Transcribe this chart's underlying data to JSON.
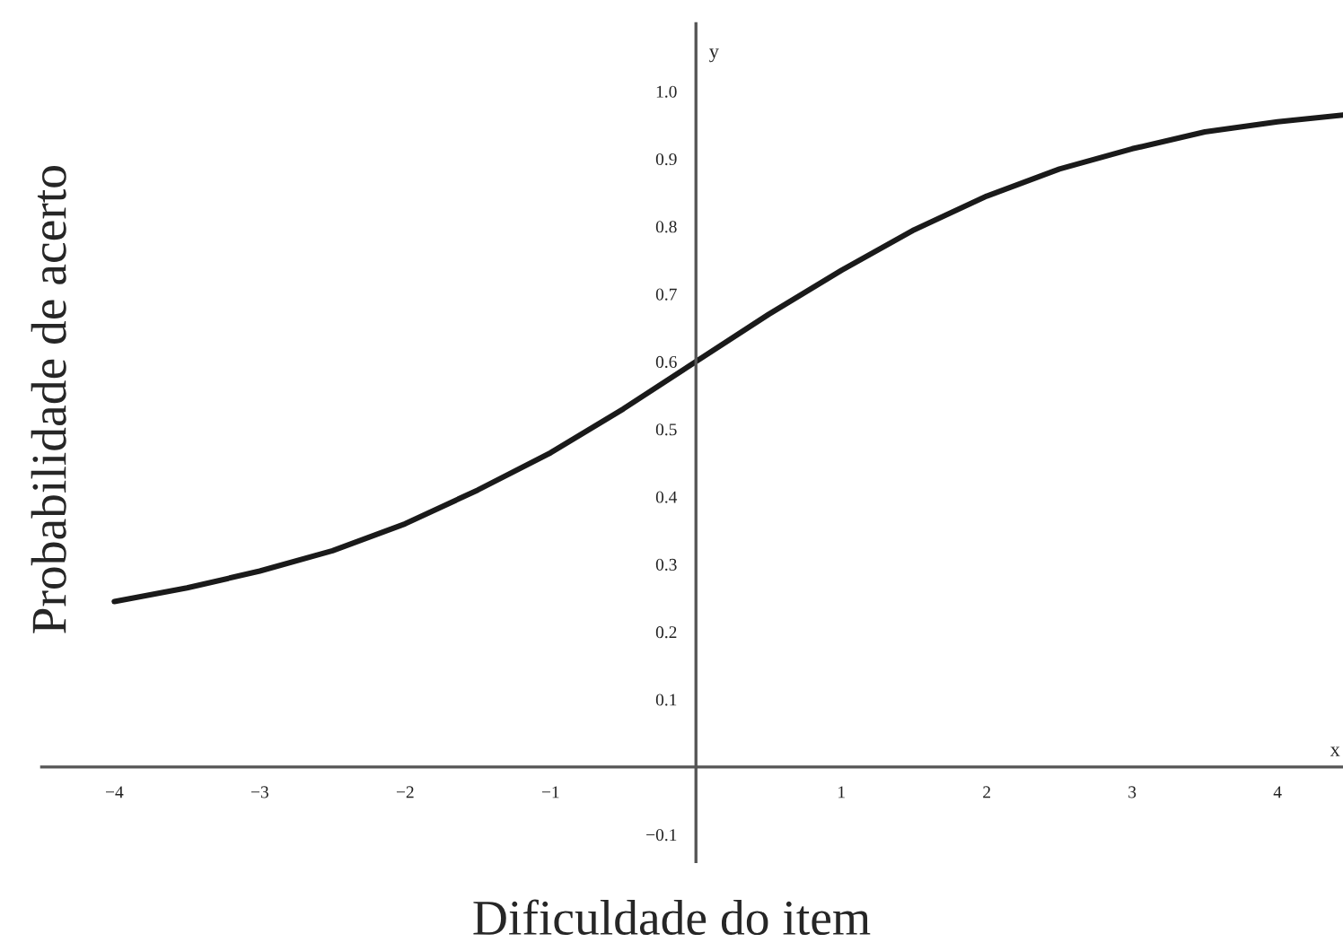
{
  "chart_data": {
    "type": "line",
    "xlabel": "Dificuldade do item",
    "ylabel": "Probabilidade de acerto",
    "annotations": [
      "y",
      "x"
    ],
    "x": [
      -4,
      -3.5,
      -3,
      -2.5,
      -2,
      -1.5,
      -1,
      -0.5,
      0,
      0.5,
      1,
      1.5,
      2,
      2.5,
      3,
      3.5,
      4,
      4.45
    ],
    "series": [
      {
        "color": "#1a1a1a",
        "values": [
          0.245,
          0.265,
          0.29,
          0.32,
          0.36,
          0.41,
          0.465,
          0.53,
          0.6,
          0.67,
          0.735,
          0.795,
          0.845,
          0.885,
          0.915,
          0.94,
          0.955,
          0.965
        ]
      }
    ],
    "xlim": [
      -4.5,
      4.45
    ],
    "ylim": [
      -0.14,
      1.1
    ],
    "xticks": [
      {
        "value": -4,
        "label": "−4"
      },
      {
        "value": -3,
        "label": "−3"
      },
      {
        "value": -2,
        "label": "−2"
      },
      {
        "value": -1,
        "label": "−1"
      },
      1,
      2,
      3,
      4
    ],
    "yticks": [
      {
        "value": -0.1,
        "label": "−0.1"
      },
      0.1,
      0.2,
      0.3,
      0.4,
      0.5,
      0.6,
      0.7,
      0.8,
      0.9,
      {
        "value": 1.0,
        "label": "1.0"
      }
    ],
    "grid": false,
    "legend": false,
    "marker": "none",
    "line_style": "solid"
  }
}
